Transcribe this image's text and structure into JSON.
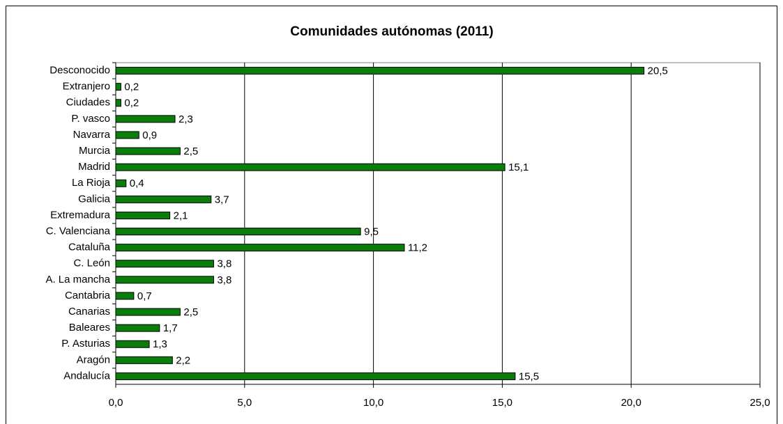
{
  "chart_data": {
    "type": "hbar",
    "title": "Comunidades autónomas (2011)",
    "categories": [
      "Desconocido",
      "Extranjero",
      "Ciudades",
      "P. vasco",
      "Navarra",
      "Murcia",
      "Madrid",
      "La Rioja",
      "Galicia",
      "Extremadura",
      "C. Valenciana",
      "Cataluña",
      "C. León",
      "A. La mancha",
      "Cantabria",
      "Canarias",
      "Baleares",
      "P. Asturias",
      "Aragón",
      "Andalucía"
    ],
    "values": [
      20.5,
      0.2,
      0.2,
      2.3,
      0.9,
      2.5,
      15.1,
      0.4,
      3.7,
      2.1,
      9.5,
      11.2,
      3.8,
      3.8,
      0.7,
      2.5,
      1.7,
      1.3,
      2.2,
      15.5
    ],
    "value_labels": [
      "20,5",
      "0,2",
      "0,2",
      "2,3",
      "0,9",
      "2,5",
      "15,1",
      "0,4",
      "3,7",
      "2,1",
      "9,5",
      "11,2",
      "3,8",
      "3,8",
      "0,7",
      "2,5",
      "1,7",
      "1,3",
      "2,2",
      "15,5"
    ],
    "color": "#0b7d0b",
    "xlim": [
      0,
      25
    ],
    "xticks": [
      {
        "value": 0,
        "label": "0,0"
      },
      {
        "value": 5,
        "label": "5,0"
      },
      {
        "value": 10,
        "label": "10,0"
      },
      {
        "value": 15,
        "label": "15,0"
      },
      {
        "value": 20,
        "label": "20,0"
      },
      {
        "value": 25,
        "label": "25,0"
      }
    ],
    "grid": true
  }
}
